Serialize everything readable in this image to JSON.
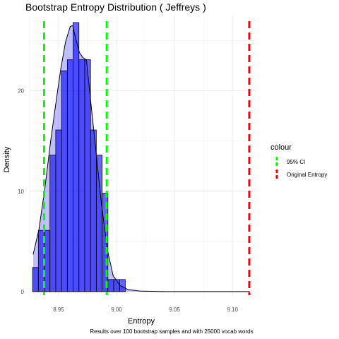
{
  "chart_data": {
    "type": "histogram",
    "title": "Bootstrap Entropy Distribution ( Jeffreys )",
    "xlabel": "Entropy",
    "ylabel": "Density",
    "caption": "Results over 100 bootstrap samples and with 25000 vocab words",
    "xlim": [
      8.925,
      9.12
    ],
    "ylim": [
      -0.5,
      27.5
    ],
    "x_ticks": [
      8.95,
      9.0,
      9.05,
      9.1
    ],
    "x_tick_labels": [
      "8.95",
      "9.00",
      "9.05",
      "9.10"
    ],
    "y_ticks": [
      0,
      10,
      20
    ],
    "y_tick_labels": [
      "0",
      "10",
      "20"
    ],
    "grid": true,
    "legend": {
      "title": "colour",
      "position": "right",
      "entries": [
        {
          "label": "95% CI",
          "color": "#00ff00",
          "line": "dashed"
        },
        {
          "label": "Original Entropy",
          "color": "#ff0000",
          "line": "dashed"
        }
      ]
    },
    "bins": {
      "width": 0.005,
      "starts": [
        8.9275,
        8.9325,
        8.9375,
        8.9425,
        8.9475,
        8.9525,
        8.9575,
        8.9625,
        8.9675,
        8.9725,
        8.9775,
        8.9825,
        8.9875,
        8.9925,
        8.9975,
        9.0025
      ],
      "density": [
        2.4,
        6.1,
        6.1,
        13.6,
        16.1,
        22.0,
        23.1,
        26.8,
        23.1,
        23.1,
        16.1,
        13.6,
        9.8,
        1.2,
        1.2,
        1.2
      ],
      "fill": "#0000ff",
      "fill_opacity": 0.6
    },
    "density_curve": {
      "x": [
        8.928,
        8.933,
        8.938,
        8.943,
        8.948,
        8.952,
        8.956,
        8.96,
        8.962,
        8.965,
        8.968,
        8.971,
        8.974,
        8.976,
        8.979,
        8.983,
        8.987,
        8.992,
        8.997,
        9.003,
        9.01,
        9.02,
        9.04,
        9.07,
        9.115
      ],
      "y": [
        3.7,
        6.2,
        10.2,
        14.9,
        19.1,
        22.3,
        24.9,
        26.4,
        26.5,
        25.1,
        23.8,
        23.3,
        23.1,
        20.8,
        17.5,
        13.1,
        8.7,
        4.2,
        1.6,
        0.6,
        0.2,
        0.05,
        0.0,
        0.0,
        0.0
      ],
      "fill": "#0000ff",
      "fill_opacity": 0.25
    },
    "vlines": [
      {
        "name": "95% CI",
        "x": 8.9375,
        "color": "#00ff00"
      },
      {
        "name": "95% CI",
        "x": 8.9915,
        "color": "#00ff00"
      },
      {
        "name": "Original Entropy",
        "x": 9.1145,
        "color": "#ff0000"
      }
    ]
  }
}
